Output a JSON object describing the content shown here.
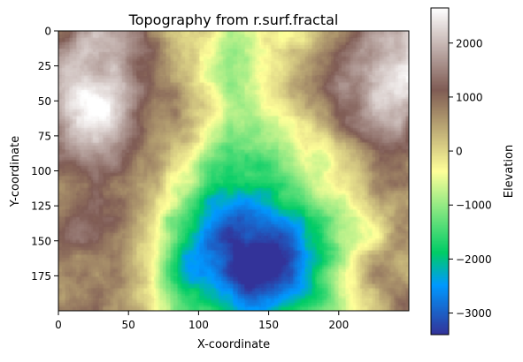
{
  "chart_data": {
    "type": "heatmap",
    "title": "Topography from r.surf.fractal",
    "xlabel": "X-coordinate",
    "ylabel": "Y-coordinate",
    "xlim": [
      0,
      250
    ],
    "ylim": [
      200,
      0
    ],
    "x_ticks": [
      0,
      50,
      100,
      150,
      200
    ],
    "y_ticks": [
      0,
      25,
      50,
      75,
      100,
      125,
      150,
      175
    ],
    "colorbar": {
      "label": "Elevation",
      "range": [
        -3400,
        2650
      ],
      "ticks": [
        -3000,
        -2000,
        -1000,
        0,
        1000,
        2000
      ],
      "colormap": "terrain"
    },
    "grid_shape": [
      200,
      250
    ],
    "elevation_model": {
      "description_of_features": "High plateaus near top-left (x~25,y~40) and top-right (x~235,y~30), deep basin near (x~140,y~160), lowlands along central top channel",
      "peaks": [
        {
          "x": 25,
          "y": 40,
          "elevation": 2300
        },
        {
          "x": 235,
          "y": 30,
          "elevation": 2300
        },
        {
          "x": 40,
          "y": 150,
          "elevation": 1300
        },
        {
          "x": 230,
          "y": 170,
          "elevation": 1100
        }
      ],
      "basin": {
        "x": 138,
        "y": 160,
        "elevation": -3300
      }
    }
  }
}
